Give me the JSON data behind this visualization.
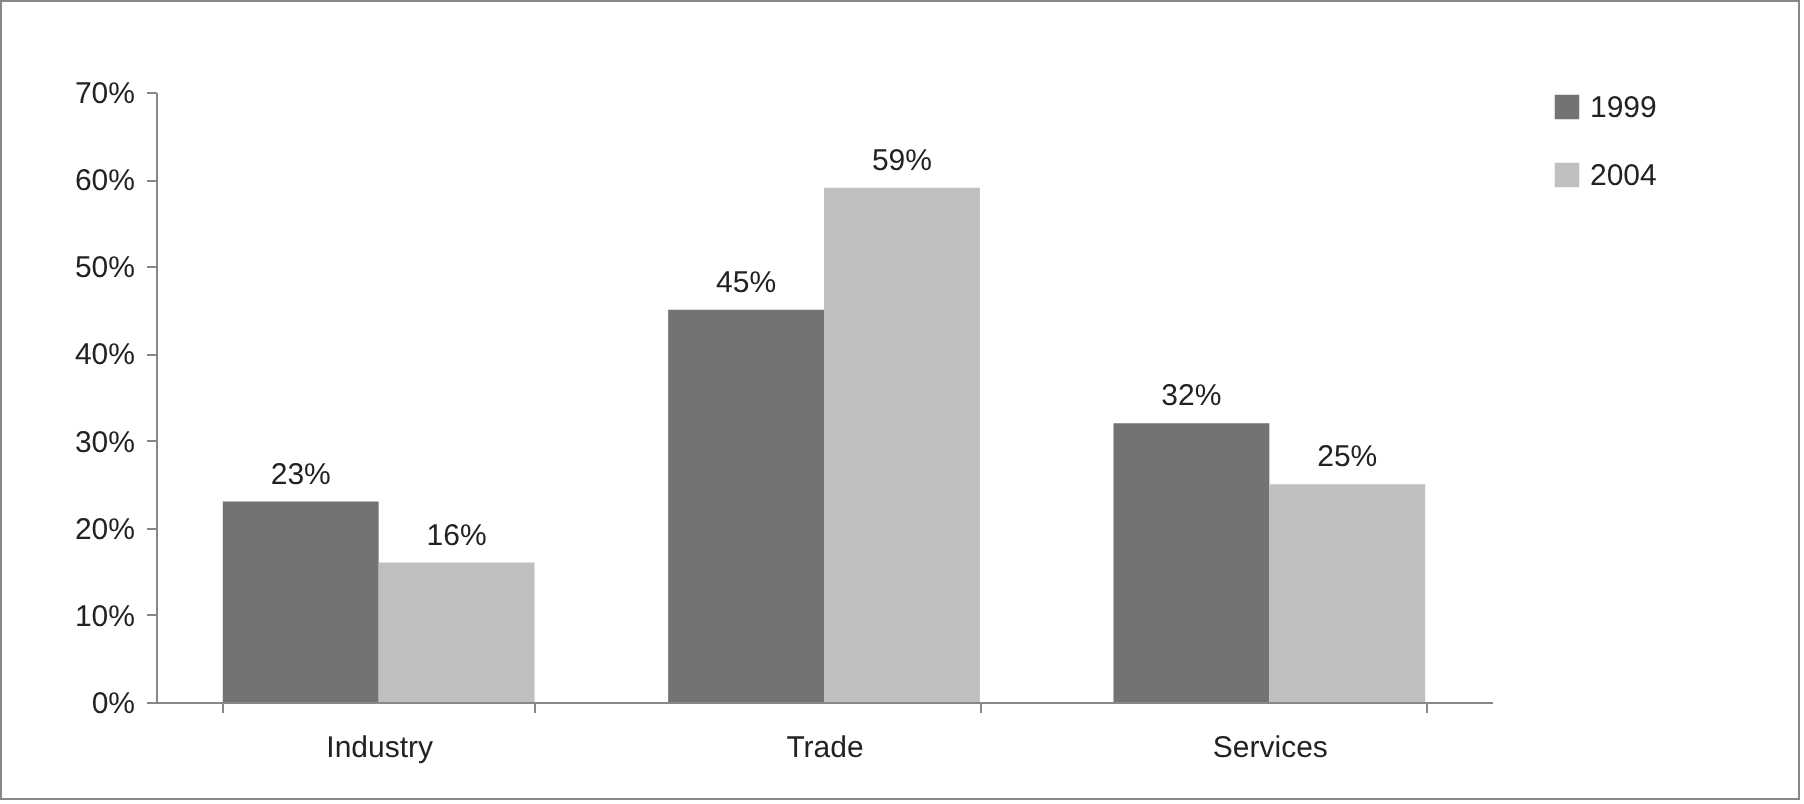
{
  "chart_data": {
    "type": "bar",
    "categories": [
      "Industry",
      "Trade",
      "Services"
    ],
    "series": [
      {
        "name": "1999",
        "color": "#737373",
        "values": [
          23,
          45,
          32
        ],
        "value_labels": [
          "23%",
          "45%",
          "32%"
        ]
      },
      {
        "name": "2004",
        "color": "#bfbfbf",
        "values": [
          16,
          59,
          25
        ],
        "value_labels": [
          "16%",
          "59%",
          "25%"
        ]
      }
    ],
    "ylim": [
      0,
      70
    ],
    "yticks": [
      {
        "value": 0,
        "label": "0%"
      },
      {
        "value": 10,
        "label": "10%"
      },
      {
        "value": 20,
        "label": "20%"
      },
      {
        "value": 30,
        "label": "30%"
      },
      {
        "value": 40,
        "label": "40%"
      },
      {
        "value": 50,
        "label": "50%"
      },
      {
        "value": 60,
        "label": "60%"
      },
      {
        "value": 70,
        "label": "70%"
      }
    ],
    "grid": false,
    "legend": "right"
  }
}
